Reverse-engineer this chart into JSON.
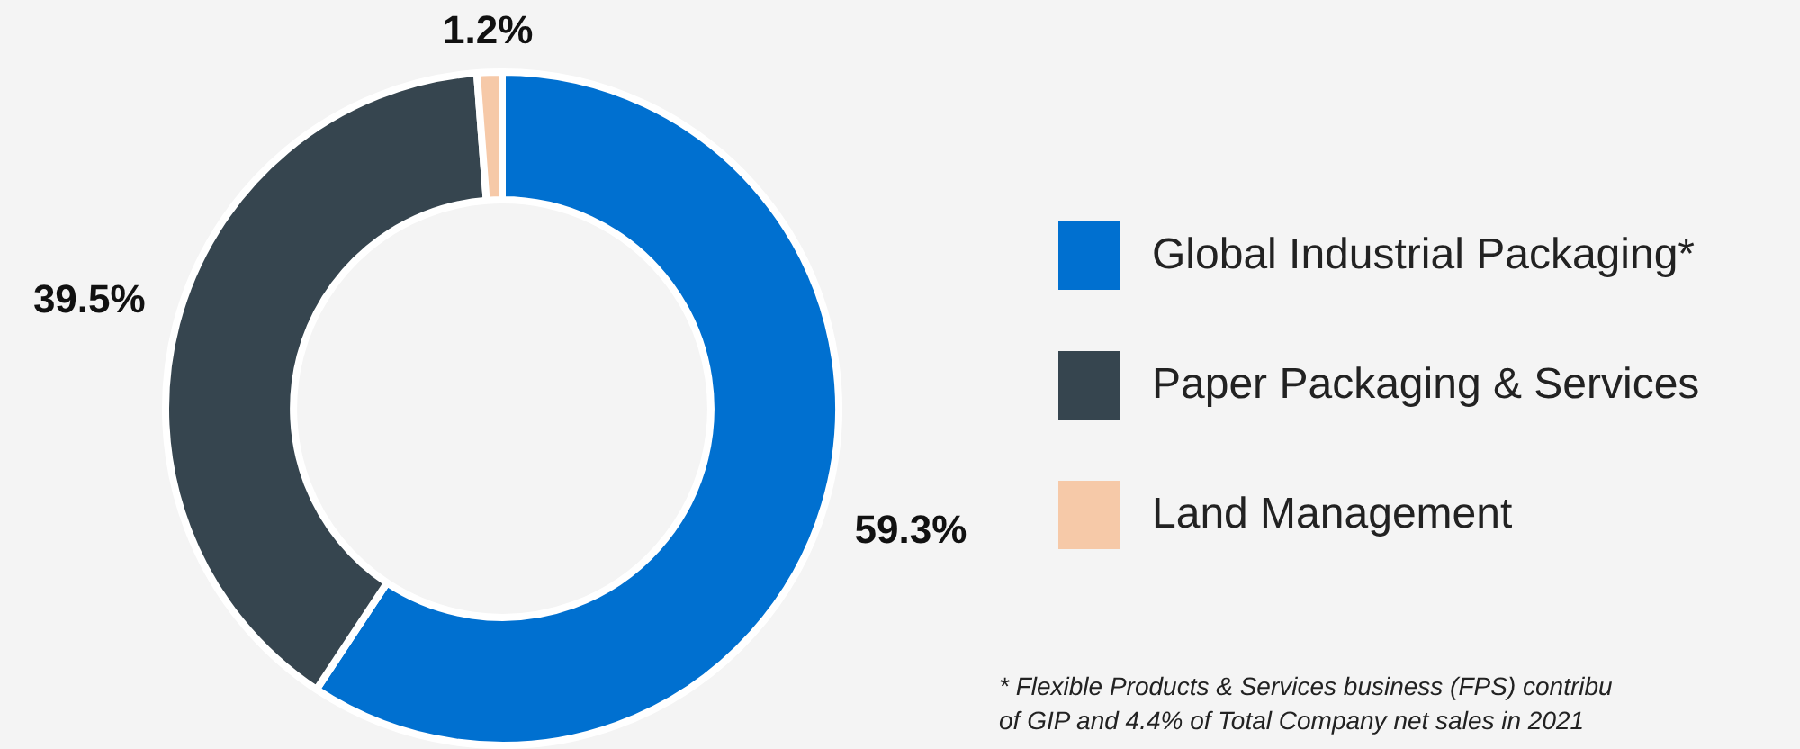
{
  "chart_data": {
    "type": "donut",
    "categories": [
      "Global Industrial Packaging*",
      "Paper Packaging & Services",
      "Land Management"
    ],
    "values": [
      59.3,
      39.5,
      1.2
    ],
    "colors": [
      "#0070d0",
      "#36454f",
      "#f6c9a8"
    ],
    "value_labels": [
      "59.3%",
      "39.5%",
      "1.2%"
    ],
    "legend": "right",
    "annotations": [
      "* Flexible Products & Services business (FPS) contribu",
      "of GIP and 4.4% of Total Company net sales in 2021"
    ]
  }
}
